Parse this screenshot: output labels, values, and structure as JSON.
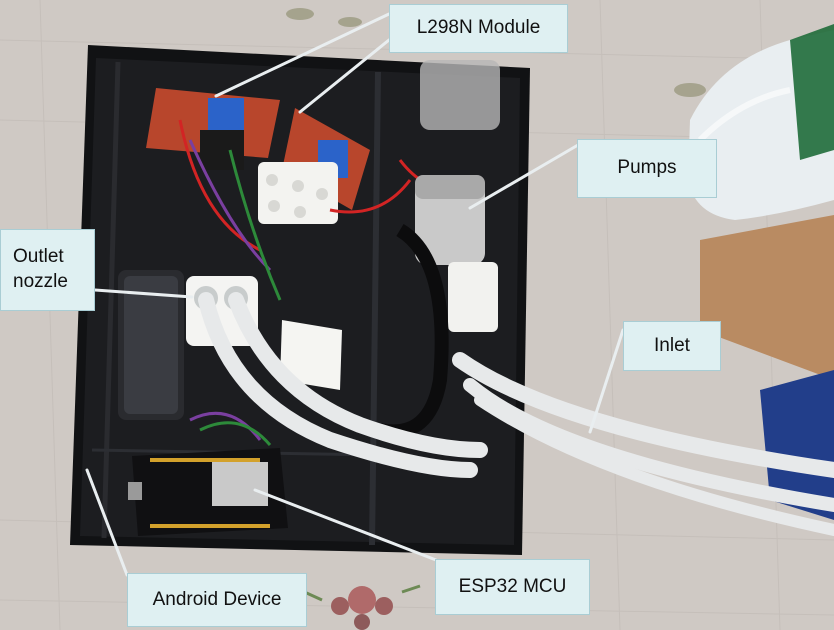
{
  "photo": {
    "subject": "pump-enclosure",
    "palette": {
      "floor": "#cfc9c4",
      "enclosure": "#111214",
      "tubing": "#e7e9ea",
      "board_red": "#b8462c",
      "board_blue": "#2b63c9",
      "bottle_cap": "#1f6b3a",
      "cardboard": "#b98b62",
      "callout_fill": "#dff0f2",
      "leader_line": "#e9eef0"
    }
  },
  "labels": {
    "l298n": "L298N Module",
    "pumps": "Pumps",
    "outlet": "Outlet nozzle",
    "inlet": "Inlet",
    "esp32": "ESP32 MCU",
    "android": "Android Device"
  }
}
